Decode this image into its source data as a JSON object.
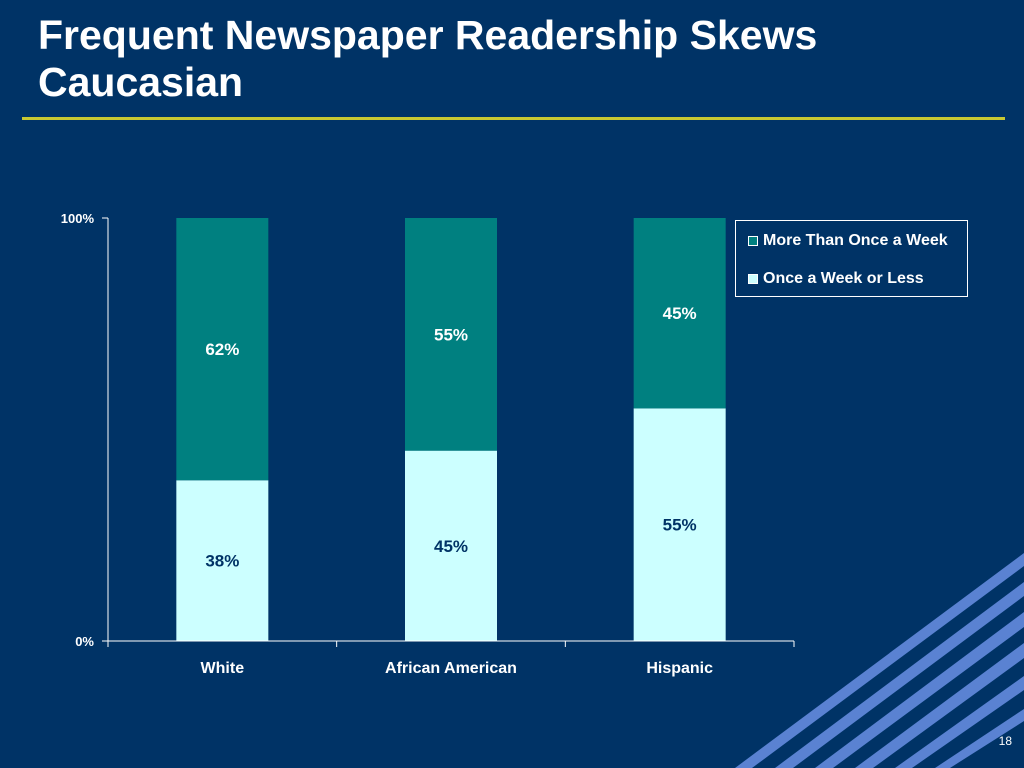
{
  "slide": {
    "title": "Frequent Newspaper Readership Skews Caucasian",
    "page_number": "18"
  },
  "colors": {
    "background": "#003366",
    "rule": "#c8c832",
    "more_than_once": "#008080",
    "once_or_less": "#ccffff",
    "stripes": "#5a82d2"
  },
  "chart_data": {
    "type": "bar",
    "stacked": true,
    "percent": true,
    "categories": [
      "White",
      "African American",
      "Hispanic"
    ],
    "series": [
      {
        "name": "Once a Week or Less",
        "values": [
          38,
          45,
          55
        ],
        "labels": [
          "38%",
          "45%",
          "55%"
        ],
        "color": "#ccffff",
        "label_color": "#003366"
      },
      {
        "name": "More Than Once a Week",
        "values": [
          62,
          55,
          45
        ],
        "labels": [
          "62%",
          "55%",
          "45%"
        ],
        "color": "#008080",
        "label_color": "#ffffff"
      }
    ],
    "ylim": [
      0,
      100
    ],
    "y_ticks": [
      "0%",
      "100%"
    ],
    "xlabel": "",
    "ylabel": "",
    "legend_position": "top-right",
    "legend_order": [
      "More Than Once a Week",
      "Once a Week or Less"
    ],
    "grid": false
  }
}
